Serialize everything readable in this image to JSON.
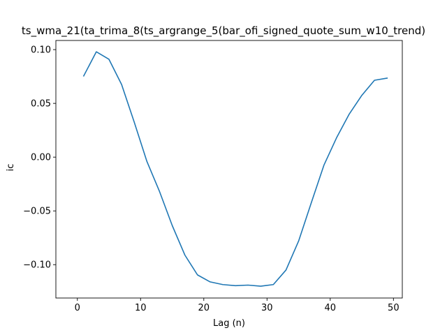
{
  "chart_data": {
    "type": "line",
    "title": "ts_wma_21(ta_trima_8(ts_argrange_5(bar_ofi_signed_quote_sum_w10_trend)",
    "xlabel": "Lag (n)",
    "ylabel": "ic",
    "xlim": [
      -3.4,
      51.4
    ],
    "ylim": [
      -0.131,
      0.1085
    ],
    "xticks": [
      0,
      10,
      20,
      30,
      40,
      50
    ],
    "yticks": [
      -0.1,
      -0.05,
      0.0,
      0.05,
      0.1
    ],
    "ytick_labels": [
      "−0.10",
      "−0.05",
      "0.00",
      "0.05",
      "0.10"
    ],
    "grid": false,
    "line_color": "#1f77b4",
    "series": [
      {
        "x": [
          1,
          3,
          5,
          7,
          9,
          11,
          13,
          15,
          17,
          19,
          21,
          23,
          25,
          27,
          29,
          31,
          33,
          35,
          37,
          39,
          41,
          43,
          45,
          47,
          49
        ],
        "values": [
          0.0755,
          0.098,
          0.091,
          0.0675,
          0.0325,
          -0.004,
          -0.032,
          -0.0635,
          -0.091,
          -0.1095,
          -0.116,
          -0.1185,
          -0.1195,
          -0.119,
          -0.12,
          -0.1185,
          -0.105,
          -0.078,
          -0.0425,
          -0.0075,
          0.018,
          0.04,
          0.0575,
          0.0715,
          0.0735
        ]
      }
    ]
  }
}
